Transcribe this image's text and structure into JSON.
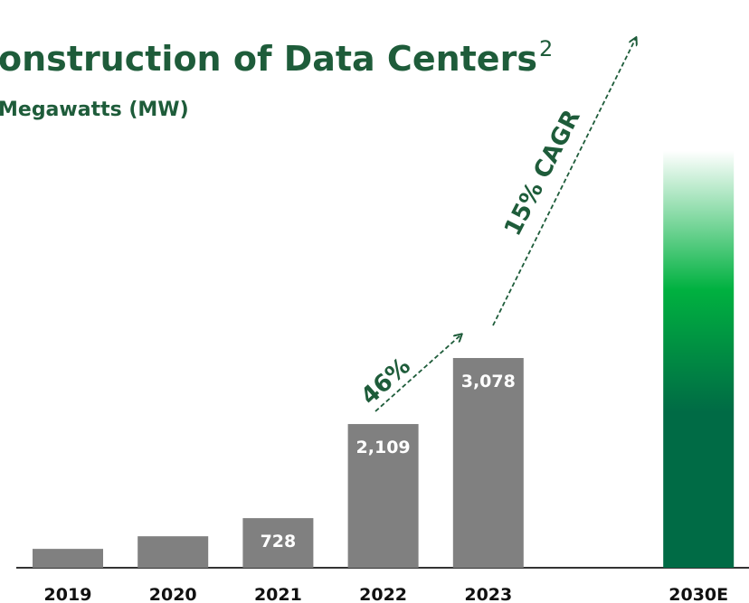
{
  "chart_data": {
    "type": "bar",
    "title": "onstruction of Data Centers",
    "title_note": "2",
    "subtitle": "Megawatts (MW)",
    "categories": [
      "2019",
      "2020",
      "2021",
      "2022",
      "2023",
      "2030E"
    ],
    "values": [
      277,
      462,
      728,
      2109,
      3078,
      8160
    ],
    "value_labels": [
      null,
      null,
      "728",
      "2,109",
      "3,078",
      null
    ],
    "color": "#808080",
    "highlight_color": "#006b45",
    "ylim": [
      0,
      8200
    ],
    "annotations": [
      "46%",
      "15% CAGR"
    ]
  }
}
